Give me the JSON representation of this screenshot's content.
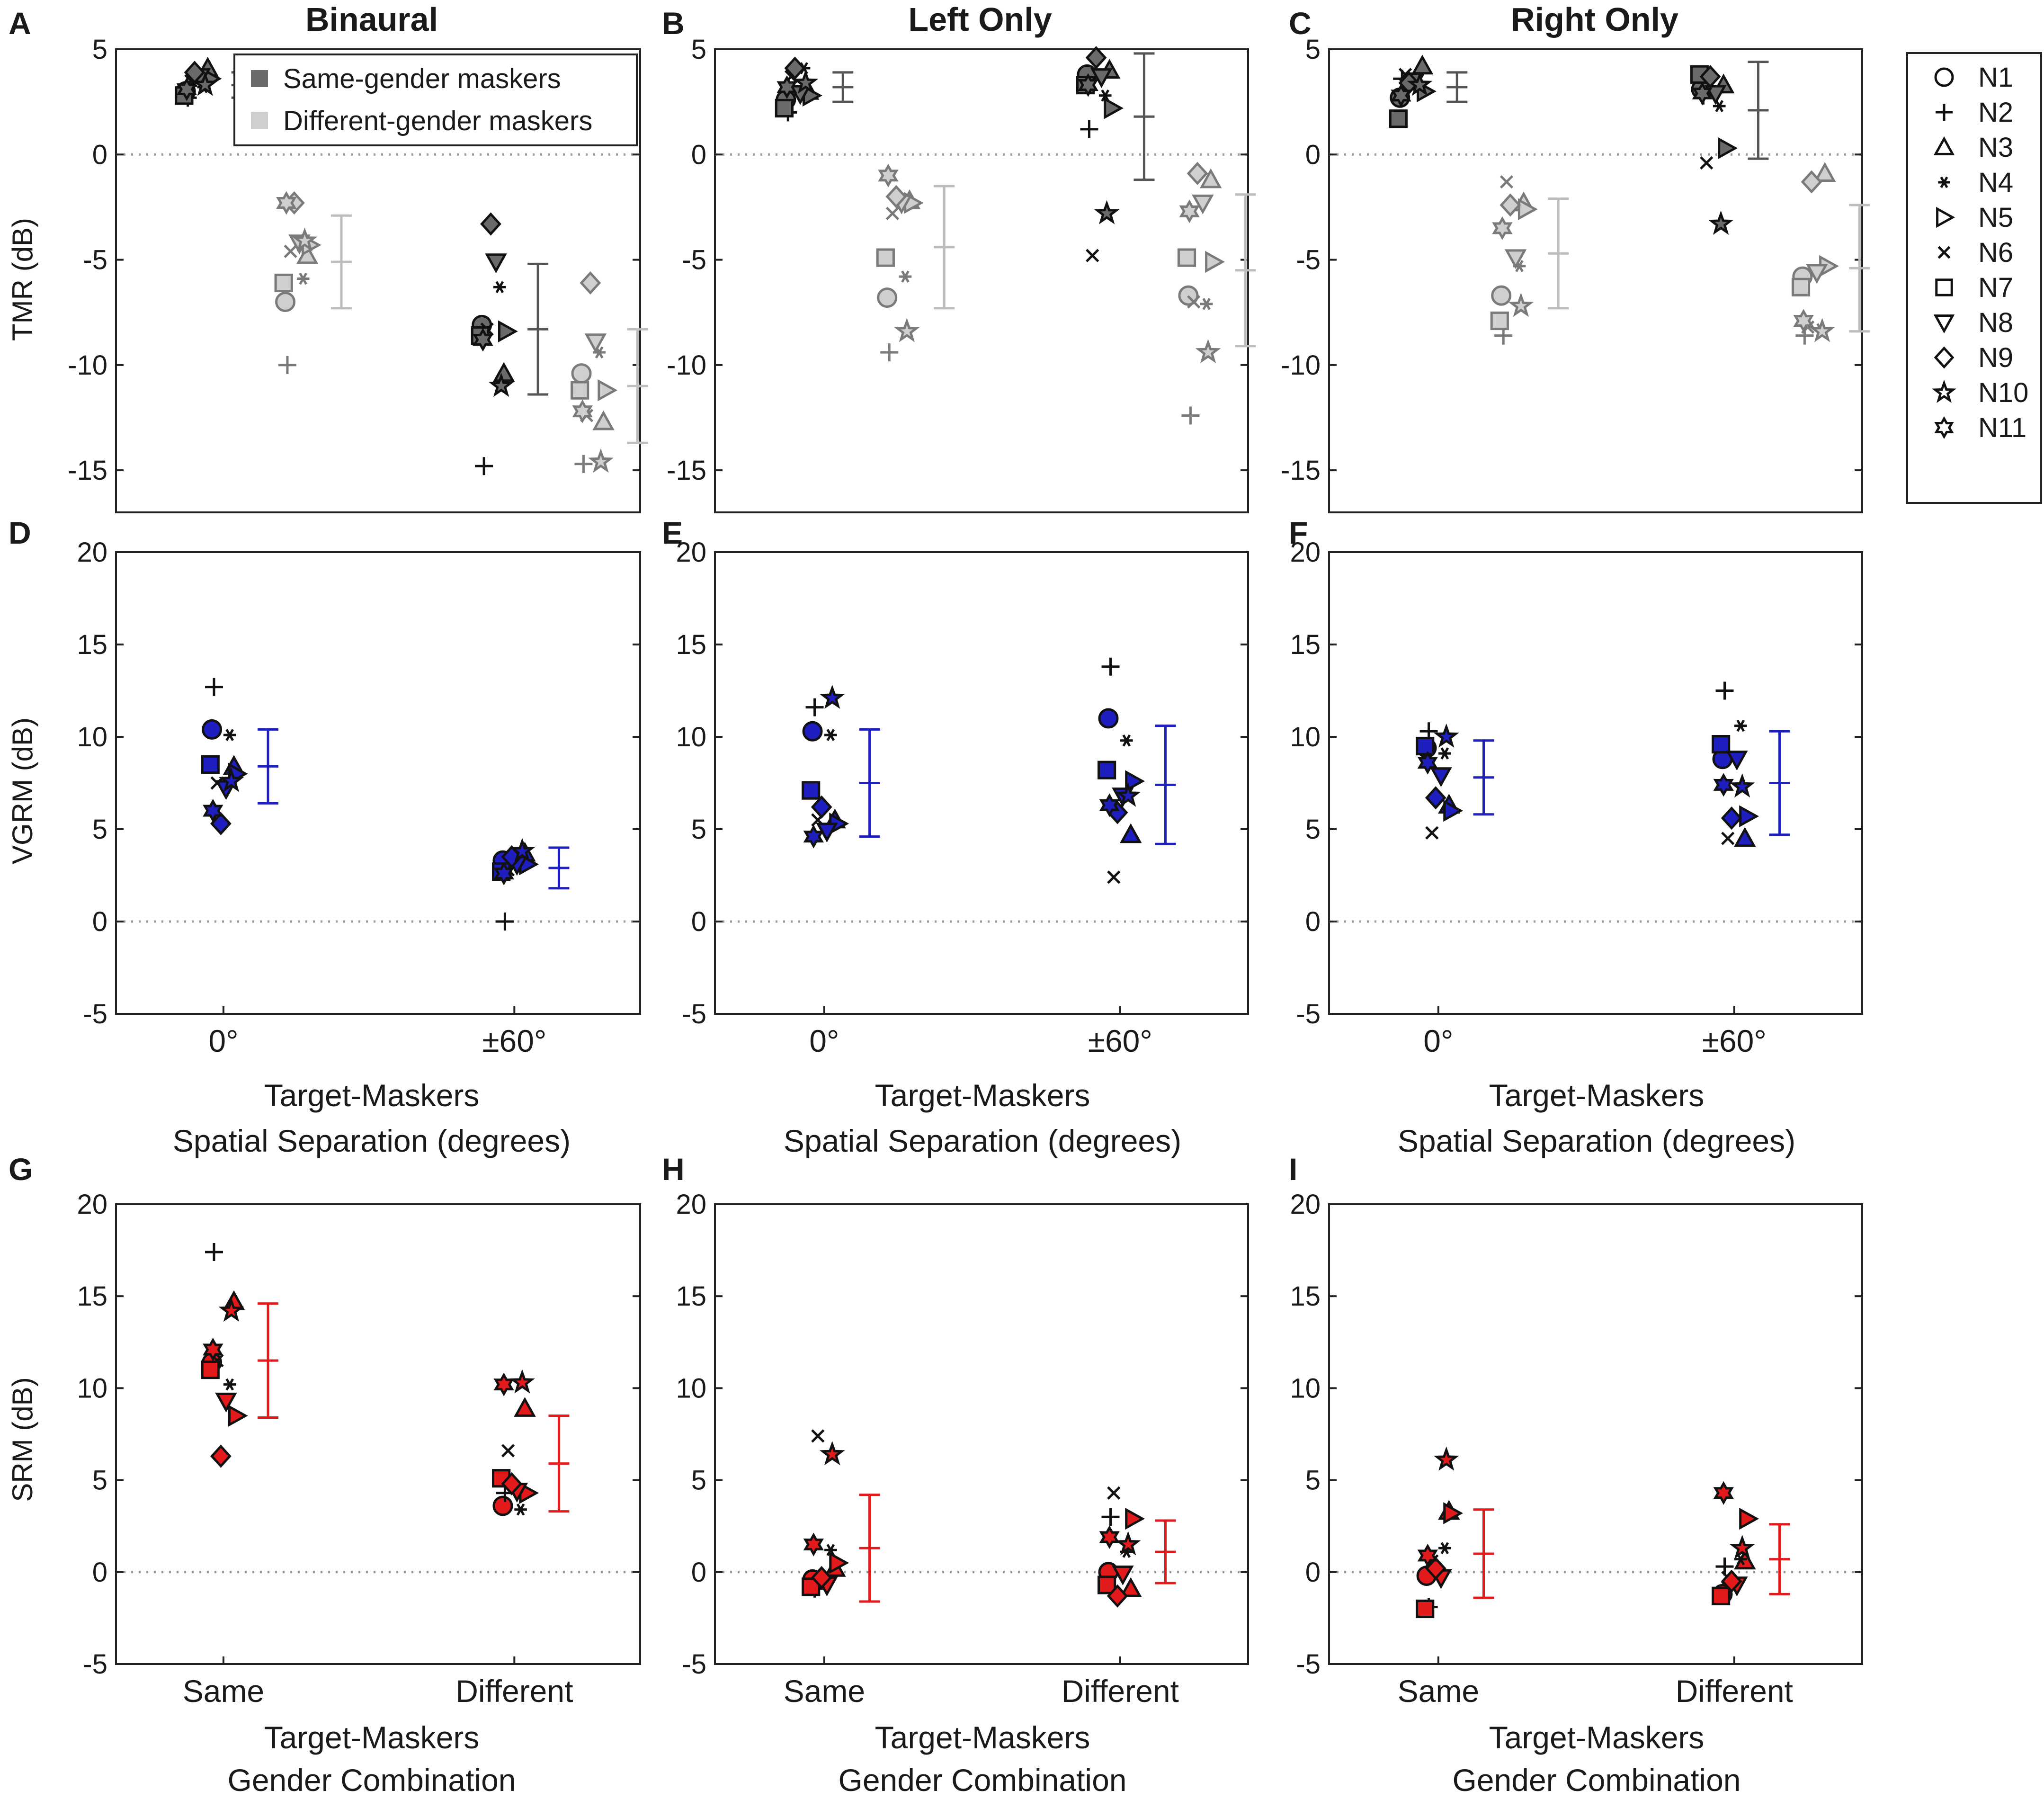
{
  "figure": {
    "title_binaural": "Binaural",
    "title_left": "Left Only",
    "title_right": "Right Only",
    "panel_letters": [
      "A",
      "B",
      "C",
      "D",
      "E",
      "F",
      "G",
      "H",
      "I"
    ]
  },
  "legend_inset": {
    "same": "Same-gender maskers",
    "diff": "Different-gender maskers",
    "same_color": "#6a6a6a",
    "diff_color": "#cfcfcf"
  },
  "subjects_legend": {
    "items": [
      "N1",
      "N2",
      "N3",
      "N4",
      "N5",
      "N6",
      "N7",
      "N8",
      "N9",
      "N10",
      "N11"
    ],
    "markers": [
      "circle",
      "plus",
      "triangle-up",
      "asterisk",
      "triangle-right",
      "cross",
      "square",
      "triangle-down",
      "diamond",
      "star5",
      "star6"
    ]
  },
  "colors": {
    "vgrm": "#1f1fbf",
    "srm": "#e31a1c",
    "same": "#6a6a6a",
    "diff": "#cfcfcf",
    "same_err": "#555555",
    "diff_err": "#bdbdbd"
  },
  "labels": {
    "tmr_y": "TMR (dB)",
    "vgrm_y": "VGRM (dB)",
    "srm_y": "SRM (dB)",
    "sep_x1": "Target-Maskers",
    "sep_x2": "Spatial Separation (degrees)",
    "gen_x1": "Target-Maskers",
    "gen_x2": "Gender Combination",
    "sep_ticks": [
      "0°",
      "±60°"
    ],
    "gen_ticks": [
      "Same",
      "Different"
    ]
  },
  "chart_data": [
    {
      "panel": "A",
      "type": "scatter",
      "title": "Binaural",
      "ylabel": "TMR (dB)",
      "ylim": [
        -17,
        5
      ],
      "yticks": [
        5,
        0,
        -5,
        -10,
        -15
      ],
      "groups": [
        {
          "name": "0° same",
          "color": "same",
          "values": [
            3.0,
            2.7,
            4.1,
            3.2,
            3.6,
            3.5,
            2.8,
            3.7,
            3.9,
            3.3,
            3.1
          ],
          "mean": 3.3,
          "err": 0.6
        },
        {
          "name": "0° different",
          "color": "diff",
          "values": [
            -7.0,
            -10.0,
            -4.8,
            -5.9,
            -4.3,
            -4.6,
            -6.1,
            -4.2,
            -2.3,
            -4.1,
            -2.3
          ],
          "mean": -5.1,
          "err": 2.2
        },
        {
          "name": "±60° same",
          "color": "same",
          "values": [
            -8.1,
            -14.8,
            -10.4,
            -6.3,
            -8.4,
            -8.3,
            -8.6,
            -5.1,
            -3.3,
            -11.0,
            -8.8
          ],
          "mean": -8.3,
          "err": 3.1
        },
        {
          "name": "±60° different",
          "color": "diff",
          "values": [
            -10.4,
            -14.7,
            -12.7,
            -9.4,
            -11.2,
            -12.4,
            -11.2,
            -8.9,
            -6.1,
            -14.6,
            -12.2
          ],
          "mean": -11.0,
          "err": 2.7
        }
      ]
    },
    {
      "panel": "B",
      "type": "scatter",
      "title": "Left Only",
      "ylabel": "TMR (dB)",
      "ylim": [
        -17,
        5
      ],
      "yticks": [
        5,
        0,
        -5,
        -10,
        -15
      ],
      "groups": [
        {
          "name": "0° same",
          "color": "same",
          "values": [
            2.6,
            2.0,
            3.0,
            4.1,
            2.8,
            3.7,
            2.2,
            2.9,
            4.1,
            3.4,
            3.2
          ],
          "mean": 3.2,
          "err": 0.7
        },
        {
          "name": "0° different",
          "color": "diff",
          "values": [
            -6.8,
            -9.4,
            -2.2,
            -5.8,
            -2.3,
            -2.8,
            -4.9,
            -2.3,
            -2.0,
            -8.4,
            -1.0
          ],
          "mean": -4.4,
          "err": 2.9
        },
        {
          "name": "±60° same",
          "color": "same",
          "values": [
            3.8,
            1.2,
            4.0,
            2.8,
            2.2,
            -4.8,
            3.3,
            3.7,
            4.6,
            -2.8,
            3.3
          ],
          "mean": 1.8,
          "err": 3.0
        },
        {
          "name": "±60° different",
          "color": "diff",
          "values": [
            -6.7,
            -12.4,
            -1.2,
            -7.1,
            -5.1,
            -7.0,
            -4.9,
            -2.3,
            -0.9,
            -9.4,
            -2.7
          ],
          "mean": -5.5,
          "err": 3.6
        }
      ]
    },
    {
      "panel": "C",
      "type": "scatter",
      "title": "Right Only",
      "ylabel": "TMR (dB)",
      "ylim": [
        -17,
        5
      ],
      "yticks": [
        5,
        0,
        -5,
        -10,
        -15
      ],
      "groups": [
        {
          "name": "0° same",
          "color": "same",
          "values": [
            2.7,
            3.6,
            4.2,
            3.3,
            3.0,
            3.8,
            1.7,
            3.5,
            3.4,
            3.3,
            2.8
          ],
          "mean": 3.2,
          "err": 0.7
        },
        {
          "name": "0° different",
          "color": "diff",
          "values": [
            -6.7,
            -8.6,
            -2.3,
            -5.3,
            -2.6,
            -1.3,
            -7.9,
            -4.9,
            -2.4,
            -7.2,
            -3.5
          ],
          "mean": -4.7,
          "err": 2.6
        },
        {
          "name": "±60° same",
          "color": "same",
          "values": [
            3.1,
            2.8,
            3.3,
            2.3,
            0.3,
            -0.4,
            3.8,
            2.9,
            3.7,
            -3.3,
            2.9
          ],
          "mean": 2.1,
          "err": 2.3
        },
        {
          "name": "±60° different",
          "color": "diff",
          "values": [
            -5.8,
            -8.6,
            -0.9,
            -8.3,
            -5.3,
            -8.2,
            -6.3,
            -5.6,
            -1.3,
            -8.4,
            -7.9
          ],
          "mean": -5.4,
          "err": 3.0
        }
      ]
    },
    {
      "panel": "D",
      "type": "scatter",
      "ylabel": "VGRM (dB)",
      "ylim": [
        -5,
        20
      ],
      "yticks": [
        20,
        15,
        10,
        5,
        0,
        -5
      ],
      "xticks": [
        "0°",
        "±60°"
      ],
      "groups": [
        {
          "name": "0°",
          "values": [
            10.4,
            12.7,
            8.4,
            10.1,
            8.0,
            7.5,
            8.5,
            7.2,
            5.3,
            7.6,
            6.0
          ],
          "mean": 8.4,
          "err": 2.0
        },
        {
          "name": "±60°",
          "values": [
            3.3,
            0.0,
            3.7,
            3.0,
            3.1,
            2.8,
            2.7,
            3.1,
            3.5,
            3.8,
            2.6
          ],
          "mean": 2.9,
          "err": 1.1
        }
      ]
    },
    {
      "panel": "E",
      "type": "scatter",
      "ylabel": "VGRM (dB)",
      "ylim": [
        -5,
        20
      ],
      "yticks": [
        20,
        15,
        10,
        5,
        0,
        -5
      ],
      "xticks": [
        "0°",
        "±60°"
      ],
      "groups": [
        {
          "name": "0°",
          "values": [
            10.3,
            11.6,
            5.5,
            10.1,
            5.3,
            5.5,
            7.1,
            4.9,
            6.2,
            12.1,
            4.6
          ],
          "mean": 7.5,
          "err": 2.9
        },
        {
          "name": "±60°",
          "values": [
            11.0,
            13.8,
            4.7,
            9.8,
            7.6,
            2.4,
            8.2,
            6.8,
            5.9,
            6.8,
            6.3
          ],
          "mean": 7.4,
          "err": 3.2
        }
      ]
    },
    {
      "panel": "F",
      "type": "scatter",
      "ylabel": "VGRM (dB)",
      "ylim": [
        -5,
        20
      ],
      "yticks": [
        20,
        15,
        10,
        5,
        0,
        -5
      ],
      "xticks": [
        "0°",
        "±60°"
      ],
      "groups": [
        {
          "name": "0°",
          "values": [
            9.4,
            10.3,
            6.3,
            9.1,
            6.0,
            4.8,
            9.5,
            7.9,
            6.7,
            10.0,
            8.6
          ],
          "mean": 7.8,
          "err": 2.0
        },
        {
          "name": "±60°",
          "values": [
            8.8,
            12.5,
            4.5,
            10.6,
            5.7,
            4.5,
            9.6,
            8.8,
            5.6,
            7.3,
            7.4
          ],
          "mean": 7.5,
          "err": 2.8
        }
      ]
    },
    {
      "panel": "G",
      "type": "scatter",
      "ylabel": "SRM (dB)",
      "ylim": [
        -5,
        20
      ],
      "yticks": [
        20,
        15,
        10,
        5,
        0,
        -5
      ],
      "xticks": [
        "Same",
        "Different"
      ],
      "groups": [
        {
          "name": "Same",
          "values": [
            11.4,
            17.4,
            14.7,
            10.2,
            8.5,
            11.5,
            11.0,
            9.3,
            6.3,
            14.2,
            12.1
          ],
          "mean": 11.5,
          "err": 3.1
        },
        {
          "name": "Different",
          "values": [
            3.6,
            4.3,
            8.9,
            3.4,
            4.3,
            6.6,
            5.1,
            4.4,
            4.8,
            10.3,
            10.2
          ],
          "mean": 5.9,
          "err": 2.6
        }
      ]
    },
    {
      "panel": "H",
      "type": "scatter",
      "ylabel": "SRM (dB)",
      "ylim": [
        -5,
        20
      ],
      "yticks": [
        20,
        15,
        10,
        5,
        0,
        -5
      ],
      "xticks": [
        "Same",
        "Different"
      ],
      "groups": [
        {
          "name": "Same",
          "values": [
            -0.4,
            -0.9,
            0.2,
            1.2,
            0.5,
            7.4,
            -0.8,
            -0.7,
            -0.3,
            6.4,
            1.5
          ],
          "mean": 1.3,
          "err": 2.9
        },
        {
          "name": "Different",
          "values": [
            0.0,
            3.0,
            -0.9,
            1.1,
            2.9,
            4.3,
            -0.7,
            -0.1,
            -1.3,
            1.5,
            1.9
          ],
          "mean": 1.1,
          "err": 1.7
        }
      ]
    },
    {
      "panel": "I",
      "type": "scatter",
      "ylabel": "SRM (dB)",
      "ylim": [
        -5,
        20
      ],
      "yticks": [
        20,
        15,
        10,
        5,
        0,
        -5
      ],
      "xticks": [
        "Same",
        "Different"
      ],
      "groups": [
        {
          "name": "Same",
          "values": [
            -0.2,
            -1.9,
            3.3,
            1.3,
            3.2,
            0.6,
            -2.0,
            -0.3,
            0.2,
            6.1,
            0.9
          ],
          "mean": 1.0,
          "err": 2.4
        },
        {
          "name": "Different",
          "values": [
            -1.2,
            0.3,
            0.6,
            0.7,
            2.9,
            -0.3,
            -1.3,
            -0.7,
            -0.5,
            1.3,
            4.3
          ],
          "mean": 0.7,
          "err": 1.9
        }
      ]
    }
  ]
}
